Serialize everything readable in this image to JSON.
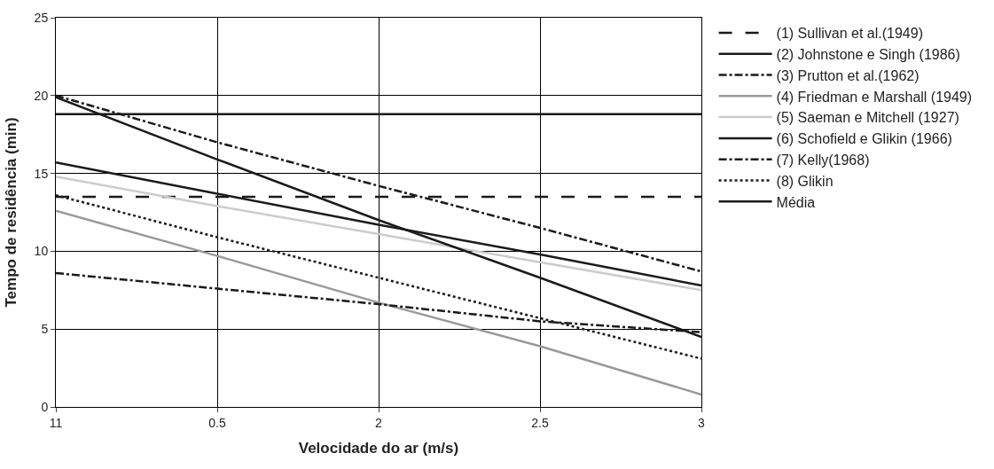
{
  "chart_data": {
    "type": "line",
    "xlabel": "Velocidade do ar (m/s)",
    "ylabel": "Tempo de residência (min)",
    "categories": [
      "11",
      "0.5",
      "2",
      "2.5",
      "3"
    ],
    "ylim": [
      0,
      25
    ],
    "yticks": [
      0,
      5,
      10,
      15,
      20,
      25
    ],
    "grid": true,
    "legend": "right",
    "marker": "none",
    "series": [
      {
        "name": "(1) Sullivan et al.(1949)",
        "color": "#1a1a1a",
        "line_style": "dashed",
        "values": [
          13.5,
          13.5,
          13.5,
          13.5,
          13.5
        ]
      },
      {
        "name": "(2) Johnstone e Singh (1986)",
        "color": "#1a1a1a",
        "line_style": "solid",
        "values": [
          15.7,
          13.7,
          11.7,
          9.8,
          7.8
        ]
      },
      {
        "name": "(3) Prutton et al.(1962)",
        "color": "#1a1a1a",
        "line_style": "dashdot",
        "values": [
          20,
          17,
          14.2,
          11.5,
          8.7
        ]
      },
      {
        "name": "(4) Friedman e Marshall (1949)",
        "color": "#999999",
        "line_style": "solid",
        "values": [
          12.6,
          9.7,
          6.7,
          3.9,
          0.8
        ]
      },
      {
        "name": "(5) Saeman e Mitchell (1927)",
        "color": "#cccccc",
        "line_style": "solid",
        "values": [
          14.8,
          12.9,
          11.1,
          9.3,
          7.5
        ]
      },
      {
        "name": "(6) Schofield e Glikin (1966)",
        "color": "#1a1a1a",
        "line_style": "solid",
        "values": [
          19.9,
          15.9,
          12.0,
          8.3,
          4.5
        ]
      },
      {
        "name": "(7) Kelly(1968)",
        "color": "#1a1a1a",
        "line_style": "dashdot",
        "values": [
          8.6,
          7.6,
          6.6,
          5.5,
          4.8
        ]
      },
      {
        "name": "(8) Glikin",
        "color": "#1a1a1a",
        "line_style": "dotted",
        "values": [
          13.6,
          10.9,
          8.3,
          5.7,
          3.1
        ]
      },
      {
        "name": "Média",
        "color": "#1a1a1a",
        "line_style": "solid",
        "values": [
          18.8,
          18.8,
          18.8,
          18.8,
          18.8
        ]
      }
    ]
  }
}
